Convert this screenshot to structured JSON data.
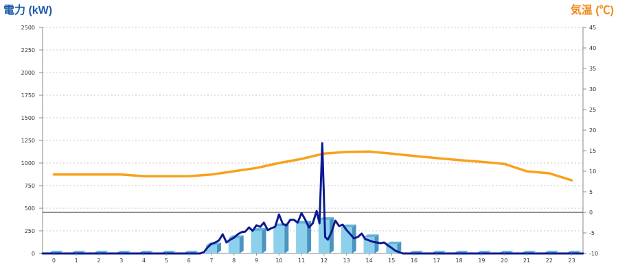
{
  "chart_data": {
    "type": "bar",
    "ylabel": "電力 (kW)",
    "y2label": "気温 (℃)",
    "categories": [
      "0",
      "1",
      "2",
      "3",
      "4",
      "5",
      "6",
      "7",
      "8",
      "9",
      "10",
      "11",
      "12",
      "13",
      "14",
      "15",
      "16",
      "17",
      "18",
      "19",
      "20",
      "21",
      "22",
      "23"
    ],
    "x_range": [
      0,
      24
    ],
    "y_left": {
      "range": [
        0,
        2500
      ],
      "ticks": [
        "0",
        "250",
        "500",
        "750",
        "1000",
        "1250",
        "1500",
        "1750",
        "2000",
        "2250",
        "2500"
      ]
    },
    "y_right": {
      "range": [
        -10,
        45
      ],
      "ticks": [
        "-10",
        "-5",
        "0",
        "5",
        "10",
        "15",
        "20",
        "25",
        "30",
        "35",
        "40",
        "45"
      ]
    },
    "grid": true,
    "reference_lines": [
      {
        "axis": "right",
        "value": 0
      }
    ],
    "series": [
      {
        "type": "bar",
        "axis": "left",
        "values": [
          0,
          0,
          0,
          0,
          0,
          0,
          0,
          90,
          170,
          250,
          300,
          330,
          370,
          290,
          180,
          100,
          0,
          0,
          0,
          0,
          0,
          0,
          0,
          0
        ]
      },
      {
        "type": "line",
        "axis": "left",
        "points": [
          [
            0,
            0
          ],
          [
            7,
            0
          ],
          [
            7.17,
            15
          ],
          [
            7.33,
            68
          ],
          [
            7.5,
            106
          ],
          [
            7.67,
            121
          ],
          [
            7.83,
            144
          ],
          [
            8,
            212
          ],
          [
            8.17,
            121
          ],
          [
            8.33,
            152
          ],
          [
            8.5,
            174
          ],
          [
            8.67,
            212
          ],
          [
            8.83,
            235
          ],
          [
            9,
            242
          ],
          [
            9.17,
            288
          ],
          [
            9.33,
            250
          ],
          [
            9.5,
            311
          ],
          [
            9.67,
            295
          ],
          [
            9.83,
            341
          ],
          [
            10,
            258
          ],
          [
            10.17,
            280
          ],
          [
            10.33,
            295
          ],
          [
            10.5,
            432
          ],
          [
            10.67,
            326
          ],
          [
            10.83,
            310
          ],
          [
            11,
            371
          ],
          [
            11.17,
            371
          ],
          [
            11.33,
            341
          ],
          [
            11.5,
            447
          ],
          [
            11.67,
            371
          ],
          [
            11.83,
            288
          ],
          [
            12,
            333
          ],
          [
            12.17,
            470
          ],
          [
            12.3,
            333
          ],
          [
            12.42,
            1220
          ],
          [
            12.55,
            182
          ],
          [
            12.67,
            152
          ],
          [
            12.83,
            235
          ],
          [
            13,
            364
          ],
          [
            13.17,
            303
          ],
          [
            13.33,
            318
          ],
          [
            13.5,
            258
          ],
          [
            13.67,
            212
          ],
          [
            13.83,
            167
          ],
          [
            14,
            182
          ],
          [
            14.17,
            220
          ],
          [
            14.33,
            159
          ],
          [
            14.5,
            144
          ],
          [
            14.67,
            129
          ],
          [
            14.83,
            121
          ],
          [
            15,
            114
          ],
          [
            15.17,
            121
          ],
          [
            15.33,
            91
          ],
          [
            15.5,
            61
          ],
          [
            15.67,
            30
          ],
          [
            15.83,
            15
          ],
          [
            16,
            0
          ],
          [
            24,
            0
          ]
        ]
      },
      {
        "type": "line",
        "axis": "right",
        "values": [
          9.2,
          9.2,
          9.2,
          9.2,
          8.8,
          8.8,
          8.8,
          9.2,
          10.0,
          10.8,
          12.0,
          13.0,
          14.3,
          14.7,
          14.8,
          14.3,
          13.7,
          13.2,
          12.7,
          12.3,
          11.8,
          10.0,
          9.5,
          7.8
        ]
      }
    ],
    "colors": {
      "left_axis_title": "#1c5ba8",
      "right_axis_title": "#ef8a1d",
      "bar_front": "#8dd0ec",
      "bar_top": "#68b3da",
      "bar_side": "#4a95c0",
      "power_line": "#0c1a8f",
      "temperature_line": "#f7a21b",
      "gridline": "#c6c6c6",
      "axis": "#8a8a8a",
      "reference_line": "#222222"
    }
  }
}
